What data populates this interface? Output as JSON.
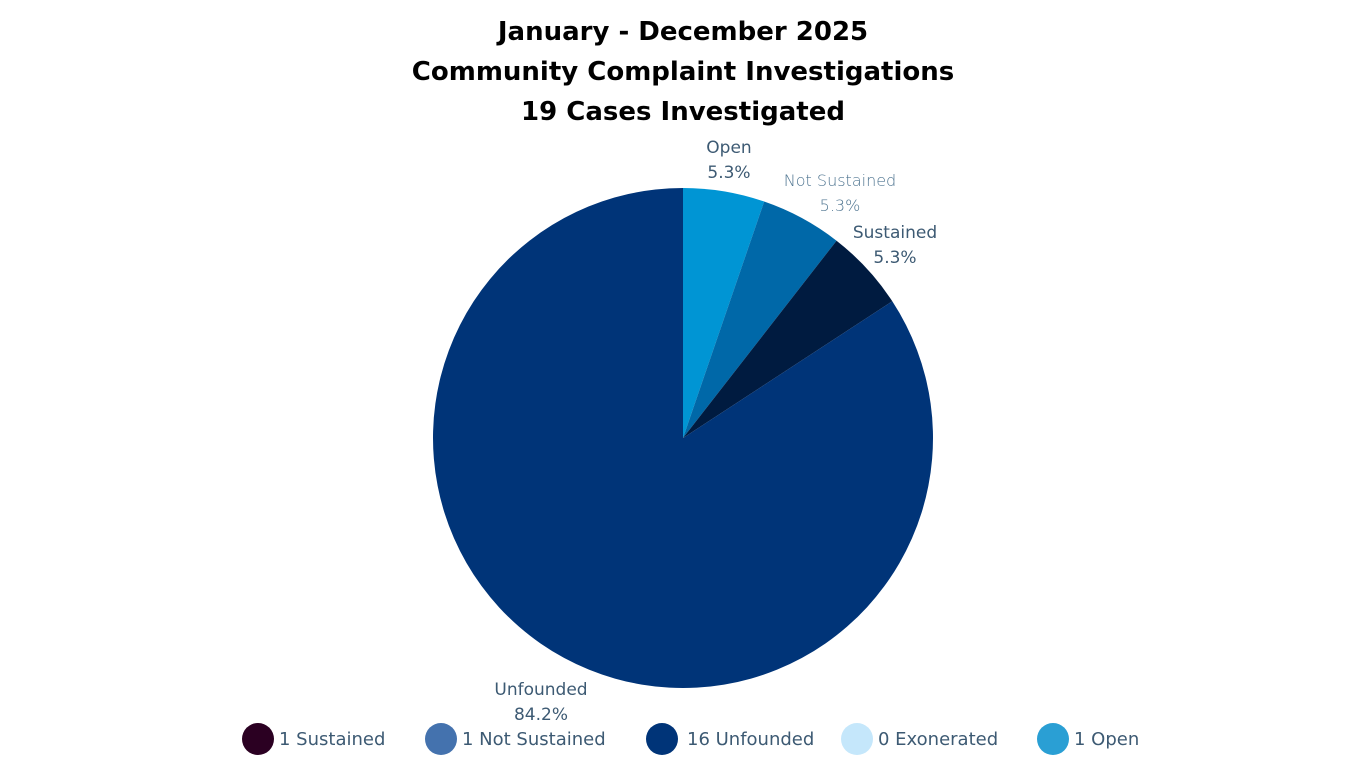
{
  "title": {
    "line1": "January - December 2025",
    "line2": "Community Complaint Investigations",
    "line3": "19 Cases Investigated"
  },
  "chart_data": {
    "type": "pie",
    "title": "January - December 2025 Community Complaint Investigations — 19 Cases Investigated",
    "total": 19,
    "start_angle": "12 o'clock, clockwise",
    "slices": [
      {
        "name": "Open",
        "count": 1,
        "percent": 5.3,
        "label": "Open",
        "pct_label": "5.3%",
        "color": "#0095D4"
      },
      {
        "name": "Not Sustained",
        "count": 1,
        "percent": 5.3,
        "label": "Not Sustained",
        "pct_label": "5.3%",
        "color": "#0068A8"
      },
      {
        "name": "Sustained",
        "count": 1,
        "percent": 5.3,
        "label": "Sustained",
        "pct_label": "5.3%",
        "color": "#001B40"
      },
      {
        "name": "Unfounded",
        "count": 16,
        "percent": 84.2,
        "label": "Unfounded",
        "pct_label": "84.2%",
        "color": "#003478"
      },
      {
        "name": "Exonerated",
        "count": 0,
        "percent": 0,
        "label": "Exonerated",
        "pct_label": "0%",
        "color": "#C5E7FB"
      }
    ],
    "legend": [
      {
        "label": "1 Sustained",
        "color": "#2B0022"
      },
      {
        "label": "1 Not Sustained",
        "color": "#4472AE"
      },
      {
        "label": "16 Unfounded",
        "color": "#003478"
      },
      {
        "label": "0 Exonerated",
        "color": "#C5E7FB"
      },
      {
        "label": "1 Open",
        "color": "#2A9FD4"
      }
    ],
    "legend_position": "bottom"
  }
}
